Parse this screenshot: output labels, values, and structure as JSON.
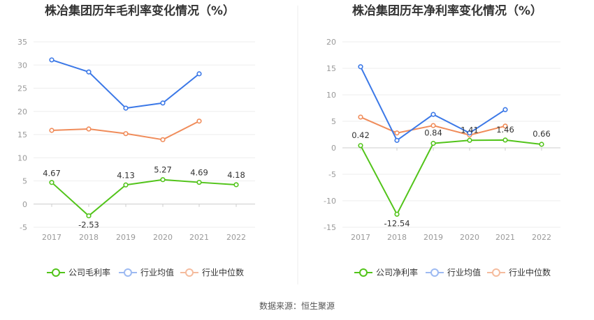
{
  "chart_data": [
    {
      "type": "line",
      "title": "株冶集团历年毛利率变化情况（%）",
      "categories": [
        "2017",
        "2018",
        "2019",
        "2020",
        "2021",
        "2022"
      ],
      "ylim": [
        -5,
        35
      ],
      "yticks": [
        -5,
        0,
        5,
        10,
        15,
        20,
        25,
        30,
        35
      ],
      "grid": true,
      "legend_position": "bottom",
      "series": [
        {
          "name": "公司毛利率",
          "color": "#52c41a",
          "values": [
            4.67,
            -2.53,
            4.13,
            5.27,
            4.69,
            4.18
          ],
          "labels": [
            "4.67",
            "-2.53",
            "4.13",
            "5.27",
            "4.69",
            "4.18"
          ]
        },
        {
          "name": "行业均值",
          "color": "#3b78e7",
          "values": [
            31.1,
            28.5,
            20.7,
            21.8,
            28.1,
            null
          ]
        },
        {
          "name": "行业中位数",
          "color": "#f08c5a",
          "values": [
            15.9,
            16.2,
            15.2,
            13.9,
            17.9,
            null
          ]
        }
      ]
    },
    {
      "type": "line",
      "title": "株冶集团历年净利率变化情况（%）",
      "categories": [
        "2017",
        "2018",
        "2019",
        "2020",
        "2021",
        "2022"
      ],
      "ylim": [
        -15,
        20
      ],
      "yticks": [
        -15,
        -10,
        -5,
        0,
        5,
        10,
        15,
        20
      ],
      "grid": true,
      "legend_position": "bottom",
      "series": [
        {
          "name": "公司净利率",
          "color": "#52c41a",
          "values": [
            0.42,
            -12.54,
            0.84,
            1.41,
            1.46,
            0.66
          ],
          "labels": [
            "0.42",
            "-12.54",
            "0.84",
            "1.41",
            "1.46",
            "0.66"
          ]
        },
        {
          "name": "行业均值",
          "color": "#3b78e7",
          "values": [
            15.3,
            1.4,
            6.3,
            2.8,
            7.2,
            null
          ]
        },
        {
          "name": "行业中位数",
          "color": "#f08c5a",
          "values": [
            5.8,
            2.8,
            4.2,
            2.4,
            4.1,
            null
          ]
        }
      ]
    }
  ],
  "source": "数据来源：恒生聚源"
}
